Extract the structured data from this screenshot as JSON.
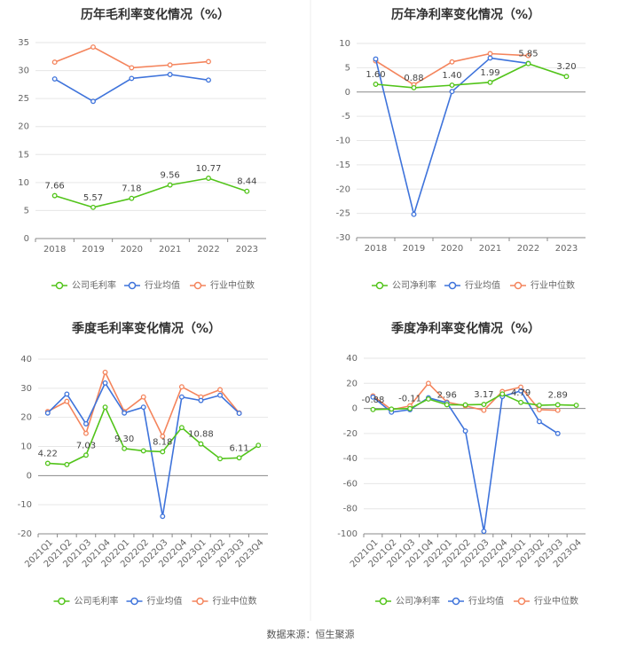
{
  "source": "数据来源：恒生聚源",
  "colors": {
    "company": "#52c41a",
    "industry_avg": "#3e73db",
    "industry_median": "#f4845c",
    "grid": "#e6e6e6",
    "axis": "#888888",
    "text": "#666666",
    "title": "#333333"
  },
  "chart_data": [
    {
      "type": "line",
      "title": "历年毛利率变化情况（%）",
      "categories": [
        "2018",
        "2019",
        "2020",
        "2021",
        "2022",
        "2023"
      ],
      "ylim": [
        0,
        35
      ],
      "yticks": [
        0,
        5,
        10,
        15,
        20,
        25,
        30,
        35
      ],
      "rotate_labels": false,
      "series": [
        {
          "name": "公司毛利率",
          "role": "company",
          "values": [
            7.66,
            5.57,
            7.18,
            9.56,
            10.77,
            8.44
          ]
        },
        {
          "name": "行业均值",
          "role": "industry_avg",
          "values": [
            28.5,
            24.5,
            28.6,
            29.3,
            28.3,
            null
          ]
        },
        {
          "name": "行业中位数",
          "role": "industry_median",
          "values": [
            31.5,
            34.2,
            30.5,
            31.0,
            31.6,
            null
          ]
        }
      ],
      "labels": [
        {
          "i": 0,
          "text": "7.66"
        },
        {
          "i": 1,
          "text": "5.57"
        },
        {
          "i": 2,
          "text": "7.18"
        },
        {
          "i": 3,
          "text": "9.56"
        },
        {
          "i": 4,
          "text": "10.77"
        },
        {
          "i": 5,
          "text": "8.44"
        }
      ]
    },
    {
      "type": "line",
      "title": "历年净利率变化情况（%）",
      "categories": [
        "2018",
        "2019",
        "2020",
        "2021",
        "2022",
        "2023"
      ],
      "ylim": [
        -30,
        10
      ],
      "yticks": [
        -30,
        -25,
        -20,
        -15,
        -10,
        -5,
        0,
        5,
        10
      ],
      "rotate_labels": false,
      "series": [
        {
          "name": "公司净利率",
          "role": "company",
          "values": [
            1.6,
            0.88,
            1.4,
            1.99,
            5.85,
            3.2
          ]
        },
        {
          "name": "行业均值",
          "role": "industry_avg",
          "values": [
            6.8,
            -25.2,
            0.1,
            7.0,
            5.9,
            null
          ]
        },
        {
          "name": "行业中位数",
          "role": "industry_median",
          "values": [
            6.4,
            1.5,
            6.2,
            7.9,
            7.5,
            null
          ]
        }
      ],
      "labels": [
        {
          "i": 0,
          "text": "1.60"
        },
        {
          "i": 1,
          "text": "0.88"
        },
        {
          "i": 2,
          "text": "1.40"
        },
        {
          "i": 3,
          "text": "1.99"
        },
        {
          "i": 4,
          "text": "5.85"
        },
        {
          "i": 5,
          "text": "3.20"
        }
      ]
    },
    {
      "type": "line",
      "title": "季度毛利率变化情况（%）",
      "categories": [
        "2021Q1",
        "2021Q2",
        "2021Q3",
        "2021Q4",
        "2022Q1",
        "2022Q2",
        "2022Q3",
        "2022Q4",
        "2023Q1",
        "2023Q2",
        "2023Q3",
        "2023Q4"
      ],
      "ylim": [
        -20,
        40
      ],
      "yticks": [
        -20,
        -10,
        0,
        10,
        20,
        30,
        40
      ],
      "rotate_labels": true,
      "series": [
        {
          "name": "公司毛利率",
          "role": "company",
          "values": [
            4.22,
            3.8,
            7.03,
            23.5,
            9.3,
            8.5,
            8.18,
            16.5,
            10.88,
            5.8,
            6.11,
            10.4
          ]
        },
        {
          "name": "行业均值",
          "role": "industry_avg",
          "values": [
            21.5,
            28.0,
            17.8,
            31.8,
            21.5,
            23.5,
            -14.0,
            27.0,
            25.8,
            27.6,
            21.4,
            null
          ]
        },
        {
          "name": "行业中位数",
          "role": "industry_median",
          "values": [
            22.0,
            25.5,
            14.5,
            35.5,
            22.0,
            27.0,
            13.5,
            30.5,
            27.0,
            29.5,
            21.5,
            null
          ]
        }
      ],
      "labels": [
        {
          "i": 0,
          "text": "4.22"
        },
        {
          "i": 2,
          "text": "7.03"
        },
        {
          "i": 4,
          "text": "9.30"
        },
        {
          "i": 6,
          "text": "8.18"
        },
        {
          "i": 8,
          "text": "10.88"
        },
        {
          "i": 10,
          "text": "6.11"
        }
      ]
    },
    {
      "type": "line",
      "title": "季度净利率变化情况（%）",
      "categories": [
        "2021Q1",
        "2021Q2",
        "2021Q3",
        "2021Q4",
        "2022Q1",
        "2022Q2",
        "2022Q3",
        "2022Q4",
        "2023Q1",
        "2023Q2",
        "2023Q3",
        "2023Q4"
      ],
      "ylim": [
        -100,
        40
      ],
      "yticks": [
        -100,
        -80,
        -60,
        -40,
        -20,
        0,
        20,
        40
      ],
      "rotate_labels": true,
      "series": [
        {
          "name": "公司净利率",
          "role": "company",
          "values": [
            -0.88,
            -0.5,
            -0.11,
            7.5,
            2.96,
            2.8,
            3.17,
            11.5,
            4.79,
            2.5,
            2.89,
            2.5
          ]
        },
        {
          "name": "行业均值",
          "role": "industry_avg",
          "values": [
            9.0,
            -3.0,
            -1.0,
            8.5,
            4.5,
            -18.0,
            -98.0,
            9.5,
            14.0,
            -10.5,
            -20.0,
            null
          ]
        },
        {
          "name": "行业中位数",
          "role": "industry_median",
          "values": [
            10.0,
            -1.0,
            2.0,
            20.0,
            5.0,
            2.0,
            -1.5,
            13.5,
            17.0,
            -1.0,
            -1.5,
            null
          ]
        }
      ],
      "labels": [
        {
          "i": 0,
          "text": "-0.88"
        },
        {
          "i": 2,
          "text": "-0.11"
        },
        {
          "i": 4,
          "text": "2.96"
        },
        {
          "i": 6,
          "text": "3.17"
        },
        {
          "i": 8,
          "text": "4.79"
        },
        {
          "i": 10,
          "text": "2.89"
        }
      ]
    }
  ]
}
